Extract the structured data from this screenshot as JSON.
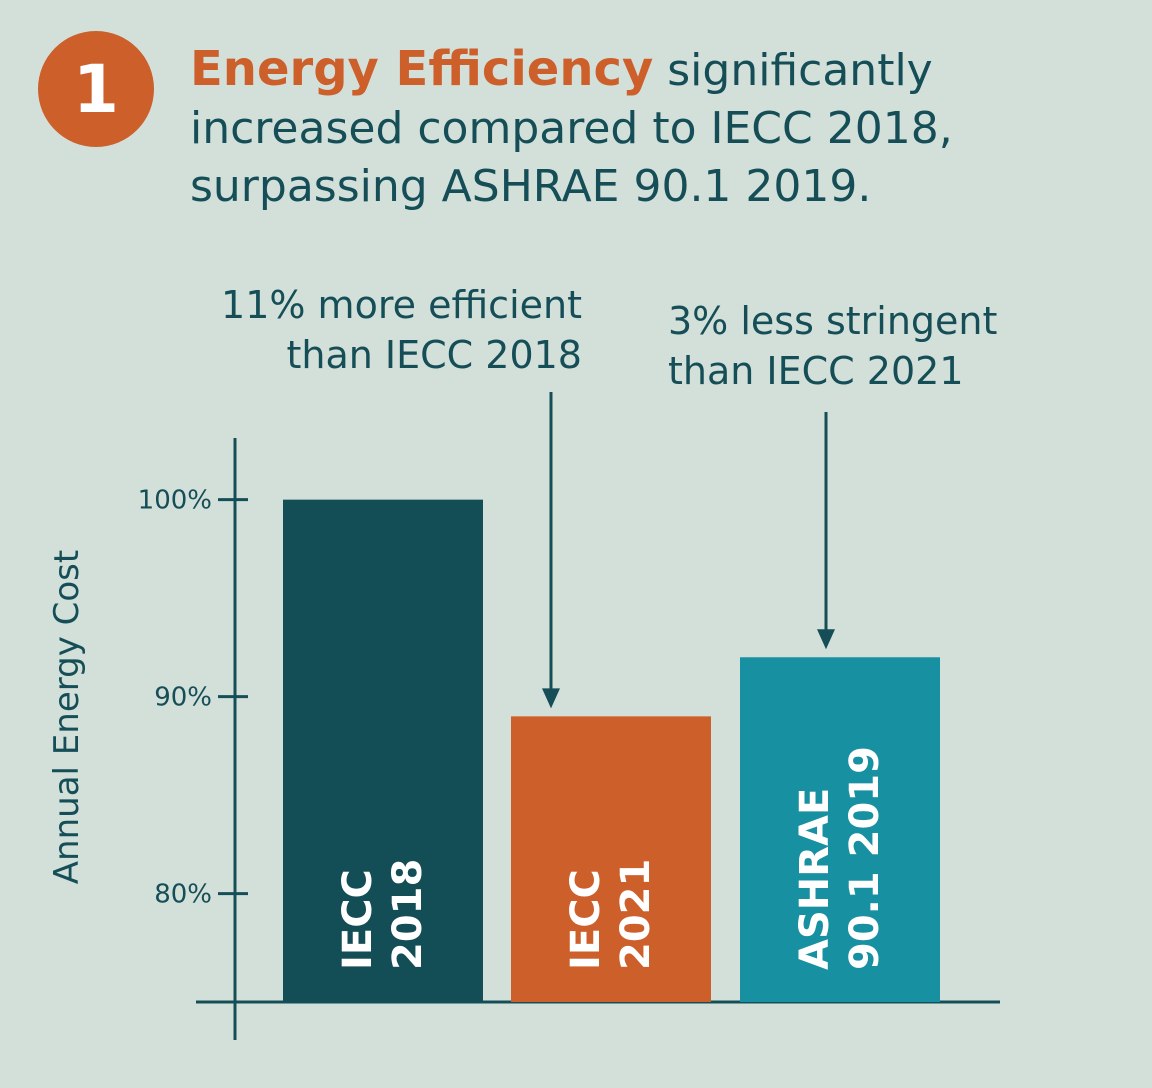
{
  "header": {
    "badge_number": "1",
    "highlight": "Energy Efficiency",
    "rest": "significantly increased compared to IECC 2018, surpassing ASHRAE 90.1 2019."
  },
  "annotations": [
    {
      "lines": [
        "11% more efficient",
        "than IECC 2018"
      ]
    },
    {
      "lines": [
        "3% less stringent",
        "than IECC 2021"
      ]
    }
  ],
  "chart_data": {
    "type": "bar",
    "categories": [
      "IECC 2018",
      "IECC 2021",
      "ASHRAE 90.1 2019"
    ],
    "category_lines": [
      [
        "IECC",
        "2018"
      ],
      [
        "IECC",
        "2021"
      ],
      [
        "ASHRAE",
        "90.1 2019"
      ]
    ],
    "values": [
      100,
      89,
      92
    ],
    "colors": [
      "#134d55",
      "#cd5f2b",
      "#1790a1"
    ],
    "ylabel": "Annual Energy Cost",
    "yticks": [
      100,
      90,
      80
    ],
    "ytick_labels": [
      "100%",
      "90%",
      "80%"
    ],
    "ylim": [
      74.5,
      102
    ],
    "annotation_targets": [
      1,
      2
    ]
  }
}
